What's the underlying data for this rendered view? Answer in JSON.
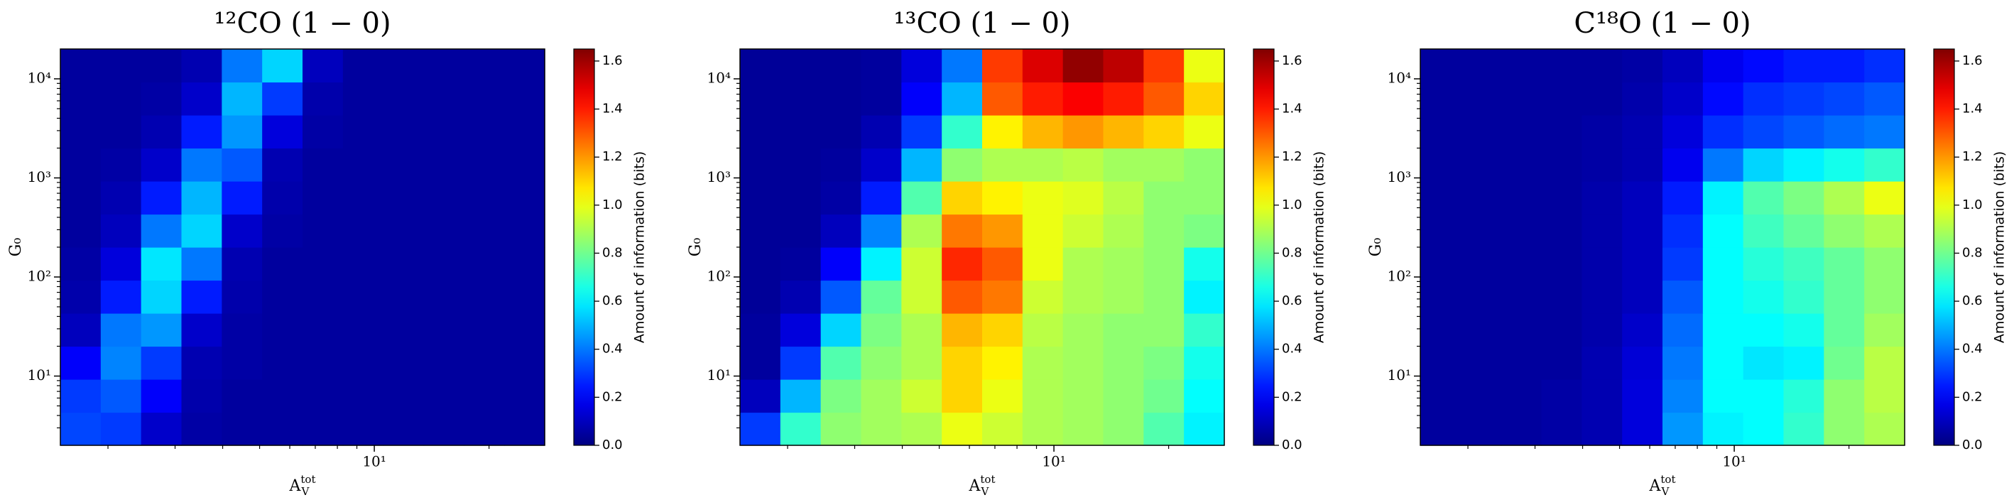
{
  "chart_data": [
    {
      "type": "heatmap",
      "title": "¹²CO (1 − 0)",
      "xlabel": {
        "base": "A",
        "sub": "V",
        "sup": "tot"
      },
      "ylabel": "G₀",
      "xscale": "log",
      "yscale": "log",
      "xlim": [
        1.5,
        28
      ],
      "ylim": [
        2,
        20000
      ],
      "xticks": [
        {
          "value": 10,
          "label": "10¹"
        }
      ],
      "yticks": [
        {
          "value": 10,
          "label": "10¹"
        },
        {
          "value": 100,
          "label": "10²"
        },
        {
          "value": 1000,
          "label": "10³"
        },
        {
          "value": 10000,
          "label": "10⁴"
        }
      ],
      "colormap": "jet",
      "clim": [
        0,
        1.65
      ],
      "colorbar_label": "Amount of information (bits)",
      "cticks": [
        {
          "value": 0,
          "label": "0.0"
        },
        0.2,
        0.4,
        0.6,
        0.8,
        {
          "value": 1,
          "label": "1.0"
        },
        1.2,
        1.4,
        1.6
      ],
      "z": [
        [
          0.32,
          0.3,
          0.12,
          0.06,
          0.05,
          0.05,
          0.05,
          0.05,
          0.05,
          0.05,
          0.05,
          0.05
        ],
        [
          0.3,
          0.35,
          0.2,
          0.07,
          0.05,
          0.05,
          0.05,
          0.05,
          0.05,
          0.05,
          0.05,
          0.05
        ],
        [
          0.2,
          0.42,
          0.3,
          0.08,
          0.06,
          0.05,
          0.05,
          0.05,
          0.05,
          0.05,
          0.05,
          0.05
        ],
        [
          0.1,
          0.4,
          0.45,
          0.12,
          0.06,
          0.05,
          0.05,
          0.05,
          0.05,
          0.05,
          0.05,
          0.05
        ],
        [
          0.07,
          0.25,
          0.55,
          0.25,
          0.07,
          0.05,
          0.05,
          0.05,
          0.05,
          0.05,
          0.05,
          0.05
        ],
        [
          0.06,
          0.15,
          0.58,
          0.4,
          0.08,
          0.05,
          0.05,
          0.05,
          0.05,
          0.05,
          0.05,
          0.05
        ],
        [
          0.05,
          0.1,
          0.4,
          0.55,
          0.12,
          0.06,
          0.05,
          0.05,
          0.05,
          0.05,
          0.05,
          0.05
        ],
        [
          0.05,
          0.08,
          0.25,
          0.5,
          0.25,
          0.07,
          0.05,
          0.05,
          0.05,
          0.05,
          0.05,
          0.05
        ],
        [
          0.05,
          0.06,
          0.12,
          0.4,
          0.35,
          0.08,
          0.05,
          0.05,
          0.05,
          0.05,
          0.05,
          0.05
        ],
        [
          0.05,
          0.05,
          0.08,
          0.25,
          0.45,
          0.15,
          0.06,
          0.05,
          0.05,
          0.05,
          0.05,
          0.05
        ],
        [
          0.05,
          0.05,
          0.06,
          0.12,
          0.5,
          0.3,
          0.07,
          0.05,
          0.05,
          0.05,
          0.05,
          0.05
        ],
        [
          0.05,
          0.05,
          0.05,
          0.08,
          0.4,
          0.55,
          0.1,
          0.05,
          0.05,
          0.05,
          0.05,
          0.05
        ]
      ]
    },
    {
      "type": "heatmap",
      "title": "¹³CO (1 − 0)",
      "xlabel": {
        "base": "A",
        "sub": "V",
        "sup": "tot"
      },
      "ylabel": "G₀",
      "xscale": "log",
      "yscale": "log",
      "xlim": [
        1.5,
        28
      ],
      "ylim": [
        2,
        20000
      ],
      "xticks": [
        {
          "value": 10,
          "label": "10¹"
        }
      ],
      "yticks": [
        {
          "value": 10,
          "label": "10¹"
        },
        {
          "value": 100,
          "label": "10²"
        },
        {
          "value": 1000,
          "label": "10³"
        },
        {
          "value": 10000,
          "label": "10⁴"
        }
      ],
      "colormap": "jet",
      "clim": [
        0,
        1.65
      ],
      "colorbar_label": "Amount of information (bits)",
      "cticks": [
        {
          "value": 0,
          "label": "0.0"
        },
        0.2,
        0.4,
        0.6,
        0.8,
        {
          "value": 1,
          "label": "1.0"
        },
        1.2,
        1.4,
        1.6
      ],
      "z": [
        [
          0.3,
          0.7,
          0.85,
          0.88,
          0.9,
          1.0,
          0.95,
          0.9,
          0.88,
          0.85,
          0.75,
          0.6
        ],
        [
          0.1,
          0.5,
          0.82,
          0.88,
          0.95,
          1.1,
          1.0,
          0.9,
          0.88,
          0.85,
          0.8,
          0.62
        ],
        [
          0.05,
          0.3,
          0.75,
          0.85,
          0.9,
          1.1,
          1.05,
          0.9,
          0.88,
          0.85,
          0.82,
          0.65
        ],
        [
          0.05,
          0.15,
          0.55,
          0.82,
          0.9,
          1.15,
          1.1,
          0.92,
          0.88,
          0.85,
          0.85,
          0.7
        ],
        [
          0.04,
          0.08,
          0.35,
          0.78,
          0.95,
          1.3,
          1.25,
          0.95,
          0.9,
          0.88,
          0.85,
          0.6
        ],
        [
          0.04,
          0.05,
          0.2,
          0.6,
          0.95,
          1.38,
          1.3,
          1.0,
          0.9,
          0.88,
          0.85,
          0.65
        ],
        [
          0.04,
          0.04,
          0.1,
          0.42,
          0.9,
          1.25,
          1.2,
          1.0,
          0.95,
          0.9,
          0.85,
          0.82
        ],
        [
          0.04,
          0.04,
          0.06,
          0.25,
          0.75,
          1.1,
          1.05,
          1.0,
          0.98,
          0.92,
          0.85,
          0.85
        ],
        [
          0.04,
          0.04,
          0.05,
          0.12,
          0.5,
          0.85,
          0.9,
          0.9,
          0.92,
          0.88,
          0.88,
          0.85
        ],
        [
          0.04,
          0.04,
          0.04,
          0.08,
          0.3,
          0.7,
          1.05,
          1.15,
          1.2,
          1.15,
          1.1,
          1.0
        ],
        [
          0.04,
          0.04,
          0.04,
          0.05,
          0.2,
          0.5,
          1.3,
          1.4,
          1.45,
          1.4,
          1.3,
          1.1
        ],
        [
          0.04,
          0.04,
          0.04,
          0.05,
          0.15,
          0.4,
          1.35,
          1.5,
          1.62,
          1.55,
          1.35,
          1.0
        ]
      ]
    },
    {
      "type": "heatmap",
      "title": "C¹⁸O (1 − 0)",
      "xlabel": {
        "base": "A",
        "sub": "V",
        "sup": "tot"
      },
      "ylabel": "G₀",
      "xscale": "log",
      "yscale": "log",
      "xlim": [
        1.5,
        28
      ],
      "ylim": [
        2,
        20000
      ],
      "xticks": [
        {
          "value": 10,
          "label": "10¹"
        }
      ],
      "yticks": [
        {
          "value": 10,
          "label": "10¹"
        },
        {
          "value": 100,
          "label": "10²"
        },
        {
          "value": 1000,
          "label": "10³"
        },
        {
          "value": 10000,
          "label": "10⁴"
        }
      ],
      "colormap": "jet",
      "clim": [
        0,
        1.65
      ],
      "colorbar_label": "Amount of information (bits)",
      "cticks": [
        {
          "value": 0,
          "label": "0.0"
        },
        0.2,
        0.4,
        0.6,
        0.8,
        {
          "value": 1,
          "label": "1.0"
        },
        1.2,
        1.4,
        1.6
      ],
      "z": [
        [
          0.05,
          0.05,
          0.05,
          0.06,
          0.08,
          0.15,
          0.45,
          0.6,
          0.62,
          0.7,
          0.85,
          0.9
        ],
        [
          0.05,
          0.05,
          0.05,
          0.06,
          0.08,
          0.15,
          0.42,
          0.62,
          0.62,
          0.68,
          0.85,
          0.92
        ],
        [
          0.05,
          0.05,
          0.05,
          0.05,
          0.08,
          0.14,
          0.4,
          0.62,
          0.58,
          0.6,
          0.8,
          0.92
        ],
        [
          0.05,
          0.05,
          0.05,
          0.05,
          0.07,
          0.12,
          0.38,
          0.62,
          0.62,
          0.65,
          0.78,
          0.88
        ],
        [
          0.05,
          0.05,
          0.05,
          0.05,
          0.07,
          0.1,
          0.35,
          0.62,
          0.65,
          0.7,
          0.78,
          0.85
        ],
        [
          0.05,
          0.05,
          0.05,
          0.05,
          0.07,
          0.1,
          0.3,
          0.62,
          0.68,
          0.72,
          0.78,
          0.85
        ],
        [
          0.05,
          0.05,
          0.05,
          0.05,
          0.07,
          0.1,
          0.28,
          0.62,
          0.72,
          0.78,
          0.85,
          0.9
        ],
        [
          0.05,
          0.05,
          0.05,
          0.05,
          0.07,
          0.1,
          0.25,
          0.6,
          0.75,
          0.82,
          0.9,
          1.0
        ],
        [
          0.05,
          0.05,
          0.05,
          0.05,
          0.06,
          0.08,
          0.18,
          0.4,
          0.55,
          0.6,
          0.65,
          0.7
        ],
        [
          0.05,
          0.05,
          0.05,
          0.05,
          0.06,
          0.08,
          0.15,
          0.28,
          0.32,
          0.35,
          0.38,
          0.4
        ],
        [
          0.05,
          0.05,
          0.05,
          0.05,
          0.05,
          0.07,
          0.12,
          0.22,
          0.28,
          0.3,
          0.32,
          0.35
        ],
        [
          0.05,
          0.05,
          0.05,
          0.05,
          0.05,
          0.06,
          0.1,
          0.18,
          0.22,
          0.25,
          0.25,
          0.28
        ]
      ]
    }
  ]
}
